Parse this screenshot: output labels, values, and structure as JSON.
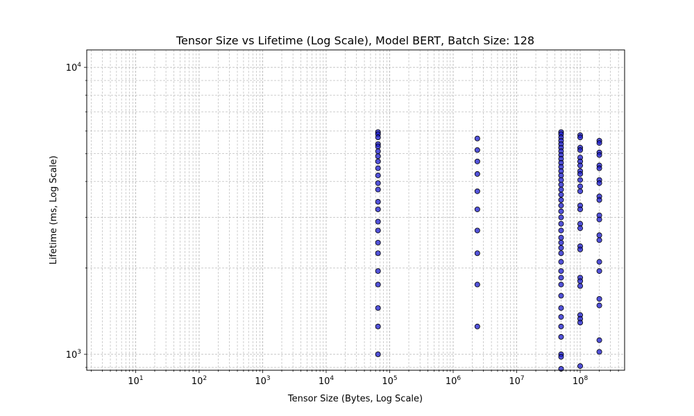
{
  "chart_data": {
    "type": "scatter",
    "title": "Tensor Size vs Lifetime (Log Scale), Model BERT, Batch Size: 128",
    "xlabel": "Tensor Size (Bytes, Log Scale)",
    "ylabel": "Lifetime (ms, Log Scale)",
    "x_scale": "log",
    "y_scale": "log",
    "xlim": [
      1.7,
      500000000
    ],
    "ylim": [
      880,
      11500
    ],
    "grid": true,
    "marker_color": "#1a1acc",
    "marker_edge_color": "#000000",
    "x_ticks": [
      {
        "base": "10",
        "exp": "1",
        "value": 10
      },
      {
        "base": "10",
        "exp": "2",
        "value": 100
      },
      {
        "base": "10",
        "exp": "3",
        "value": 1000
      },
      {
        "base": "10",
        "exp": "4",
        "value": 10000
      },
      {
        "base": "10",
        "exp": "5",
        "value": 100000
      },
      {
        "base": "10",
        "exp": "6",
        "value": 1000000
      },
      {
        "base": "10",
        "exp": "7",
        "value": 10000000
      },
      {
        "base": "10",
        "exp": "8",
        "value": 100000000
      }
    ],
    "y_ticks": [
      {
        "base": "10",
        "exp": "3",
        "value": 1000
      },
      {
        "base": "10",
        "exp": "4",
        "value": 10000
      }
    ],
    "series": [
      {
        "points": [
          [
            65536,
            5950
          ],
          [
            65536,
            5850
          ],
          [
            65536,
            5700
          ],
          [
            65536,
            5400
          ],
          [
            65536,
            5300
          ],
          [
            65536,
            5100
          ],
          [
            65536,
            4900
          ],
          [
            65536,
            4700
          ],
          [
            65536,
            4450
          ],
          [
            65536,
            4200
          ],
          [
            65536,
            3950
          ],
          [
            65536,
            3750
          ],
          [
            65536,
            3400
          ],
          [
            65536,
            3200
          ],
          [
            65536,
            2900
          ],
          [
            65536,
            2700
          ],
          [
            65536,
            2450
          ],
          [
            65536,
            2250
          ],
          [
            65536,
            1950
          ],
          [
            65536,
            1750
          ],
          [
            65536,
            1450
          ],
          [
            65536,
            1250
          ],
          [
            65536,
            1000
          ],
          [
            2400000,
            5650
          ],
          [
            2400000,
            5150
          ],
          [
            2400000,
            4700
          ],
          [
            2400000,
            4250
          ],
          [
            2400000,
            3700
          ],
          [
            2400000,
            3200
          ],
          [
            2400000,
            2700
          ],
          [
            2400000,
            2250
          ],
          [
            2400000,
            1750
          ],
          [
            2400000,
            1250
          ],
          [
            50000000,
            5950
          ],
          [
            50000000,
            5850
          ],
          [
            50000000,
            5700
          ],
          [
            50000000,
            5550
          ],
          [
            50000000,
            5400
          ],
          [
            50000000,
            5250
          ],
          [
            50000000,
            5100
          ],
          [
            50000000,
            4950
          ],
          [
            50000000,
            4800
          ],
          [
            50000000,
            4650
          ],
          [
            50000000,
            4500
          ],
          [
            50000000,
            4350
          ],
          [
            50000000,
            4200
          ],
          [
            50000000,
            4050
          ],
          [
            50000000,
            3900
          ],
          [
            50000000,
            3750
          ],
          [
            50000000,
            3600
          ],
          [
            50000000,
            3450
          ],
          [
            50000000,
            3300
          ],
          [
            50000000,
            3150
          ],
          [
            50000000,
            3000
          ],
          [
            50000000,
            2850
          ],
          [
            50000000,
            2700
          ],
          [
            50000000,
            2550
          ],
          [
            50000000,
            2450
          ],
          [
            50000000,
            2350
          ],
          [
            50000000,
            2250
          ],
          [
            50000000,
            2100
          ],
          [
            50000000,
            1950
          ],
          [
            50000000,
            1850
          ],
          [
            50000000,
            1750
          ],
          [
            50000000,
            1600
          ],
          [
            50000000,
            1450
          ],
          [
            50000000,
            1350
          ],
          [
            50000000,
            1250
          ],
          [
            50000000,
            1150
          ],
          [
            50000000,
            1000
          ],
          [
            50000000,
            980
          ],
          [
            50000000,
            890
          ],
          [
            100000000,
            5800
          ],
          [
            100000000,
            5700
          ],
          [
            100000000,
            5250
          ],
          [
            100000000,
            5150
          ],
          [
            100000000,
            4850
          ],
          [
            100000000,
            4700
          ],
          [
            100000000,
            4550
          ],
          [
            100000000,
            4350
          ],
          [
            100000000,
            4250
          ],
          [
            100000000,
            4050
          ],
          [
            100000000,
            3850
          ],
          [
            100000000,
            3700
          ],
          [
            100000000,
            3300
          ],
          [
            100000000,
            3200
          ],
          [
            100000000,
            2850
          ],
          [
            100000000,
            2750
          ],
          [
            100000000,
            2380
          ],
          [
            100000000,
            2320
          ],
          [
            100000000,
            1850
          ],
          [
            100000000,
            1800
          ],
          [
            100000000,
            1730
          ],
          [
            100000000,
            1370
          ],
          [
            100000000,
            1330
          ],
          [
            100000000,
            1290
          ],
          [
            100000000,
            910
          ],
          [
            200000000,
            5550
          ],
          [
            200000000,
            5450
          ],
          [
            200000000,
            5050
          ],
          [
            200000000,
            4950
          ],
          [
            200000000,
            4550
          ],
          [
            200000000,
            4450
          ],
          [
            200000000,
            4050
          ],
          [
            200000000,
            3950
          ],
          [
            200000000,
            3550
          ],
          [
            200000000,
            3450
          ],
          [
            200000000,
            3050
          ],
          [
            200000000,
            2950
          ],
          [
            200000000,
            2600
          ],
          [
            200000000,
            2500
          ],
          [
            200000000,
            2100
          ],
          [
            200000000,
            1950
          ],
          [
            200000000,
            1560
          ],
          [
            200000000,
            1480
          ],
          [
            200000000,
            1120
          ],
          [
            200000000,
            1020
          ]
        ]
      }
    ]
  }
}
